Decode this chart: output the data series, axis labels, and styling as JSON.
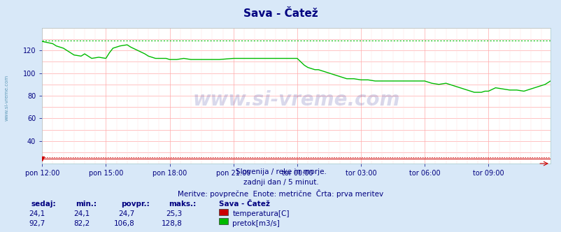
{
  "title": "Sava - Čatež",
  "title_color": "#000080",
  "bg_color": "#d8e8f8",
  "plot_bg_color": "#ffffff",
  "grid_color": "#ffaaaa",
  "watermark_text": "www.si-vreme.com",
  "watermark_color": "#000080",
  "watermark_alpha": 0.15,
  "sidebar_text": "www.si-vreme.com",
  "sidebar_color": "#4488aa",
  "subtitle1": "Slovenija / reke in morje.",
  "subtitle2": "zadnji dan / 5 minut.",
  "subtitle3": "Meritve: povprečne  Enote: metrične  Črta: prva meritev",
  "subtitle_color": "#000080",
  "tick_color": "#000080",
  "ylim": [
    20,
    140
  ],
  "yticks": [
    40,
    60,
    80,
    100,
    120
  ],
  "xtick_labels": [
    "pon 12:00",
    "pon 15:00",
    "pon 18:00",
    "pon 21:00",
    "tor 00:00",
    "tor 03:00",
    "tor 06:00",
    "tor 09:00"
  ],
  "xtick_positions": [
    0,
    36,
    72,
    108,
    144,
    180,
    216,
    252
  ],
  "total_points": 288,
  "temp_color": "#cc0000",
  "flow_color": "#00bb00",
  "flow_max_value": 128.8,
  "temp_max_value": 25.3,
  "legend_items": [
    {
      "label": "temperatura[C]",
      "color": "#cc0000"
    },
    {
      "label": "pretok[m3/s]",
      "color": "#00bb00"
    }
  ],
  "stat_headers": [
    "sedaj:",
    "min.:",
    "povpr.:",
    "maks.:"
  ],
  "stat_values_temp": [
    "24,1",
    "24,1",
    "24,7",
    "25,3"
  ],
  "stat_values_flow": [
    "92,7",
    "82,2",
    "106,8",
    "128,8"
  ],
  "stat_label": "Sava - Čatež",
  "stat_color": "#000080",
  "flow_waypoints_x": [
    0,
    3,
    6,
    8,
    12,
    14,
    16,
    18,
    22,
    24,
    26,
    28,
    32,
    36,
    38,
    40,
    44,
    48,
    50,
    54,
    58,
    60,
    64,
    68,
    70,
    72,
    76,
    80,
    84,
    88,
    90,
    96,
    100,
    108,
    112,
    116,
    120,
    124,
    128,
    132,
    136,
    140,
    144,
    146,
    148,
    150,
    152,
    154,
    156,
    160,
    164,
    168,
    172,
    176,
    180,
    184,
    188,
    192,
    196,
    200,
    204,
    208,
    212,
    216,
    220,
    224,
    228,
    232,
    234,
    236,
    238,
    240,
    242,
    244,
    246,
    248,
    250,
    252,
    256,
    260,
    264,
    268,
    272,
    276,
    280,
    284,
    287
  ],
  "flow_waypoints_y": [
    128,
    127,
    126,
    124,
    122,
    120,
    118,
    116,
    115,
    117,
    115,
    113,
    114,
    113,
    118,
    122,
    124,
    125,
    123,
    120,
    117,
    115,
    113,
    113,
    113,
    112,
    112,
    113,
    112,
    112,
    112,
    112,
    112,
    113,
    113,
    113,
    113,
    113,
    113,
    113,
    113,
    113,
    113,
    110,
    107,
    105,
    104,
    103,
    103,
    101,
    99,
    97,
    95,
    95,
    94,
    94,
    93,
    93,
    93,
    93,
    93,
    93,
    93,
    93,
    91,
    90,
    91,
    89,
    88,
    87,
    86,
    85,
    84,
    83,
    83,
    83,
    84,
    84,
    87,
    86,
    85,
    85,
    84,
    86,
    88,
    90,
    93
  ],
  "temp_value": 24.1
}
